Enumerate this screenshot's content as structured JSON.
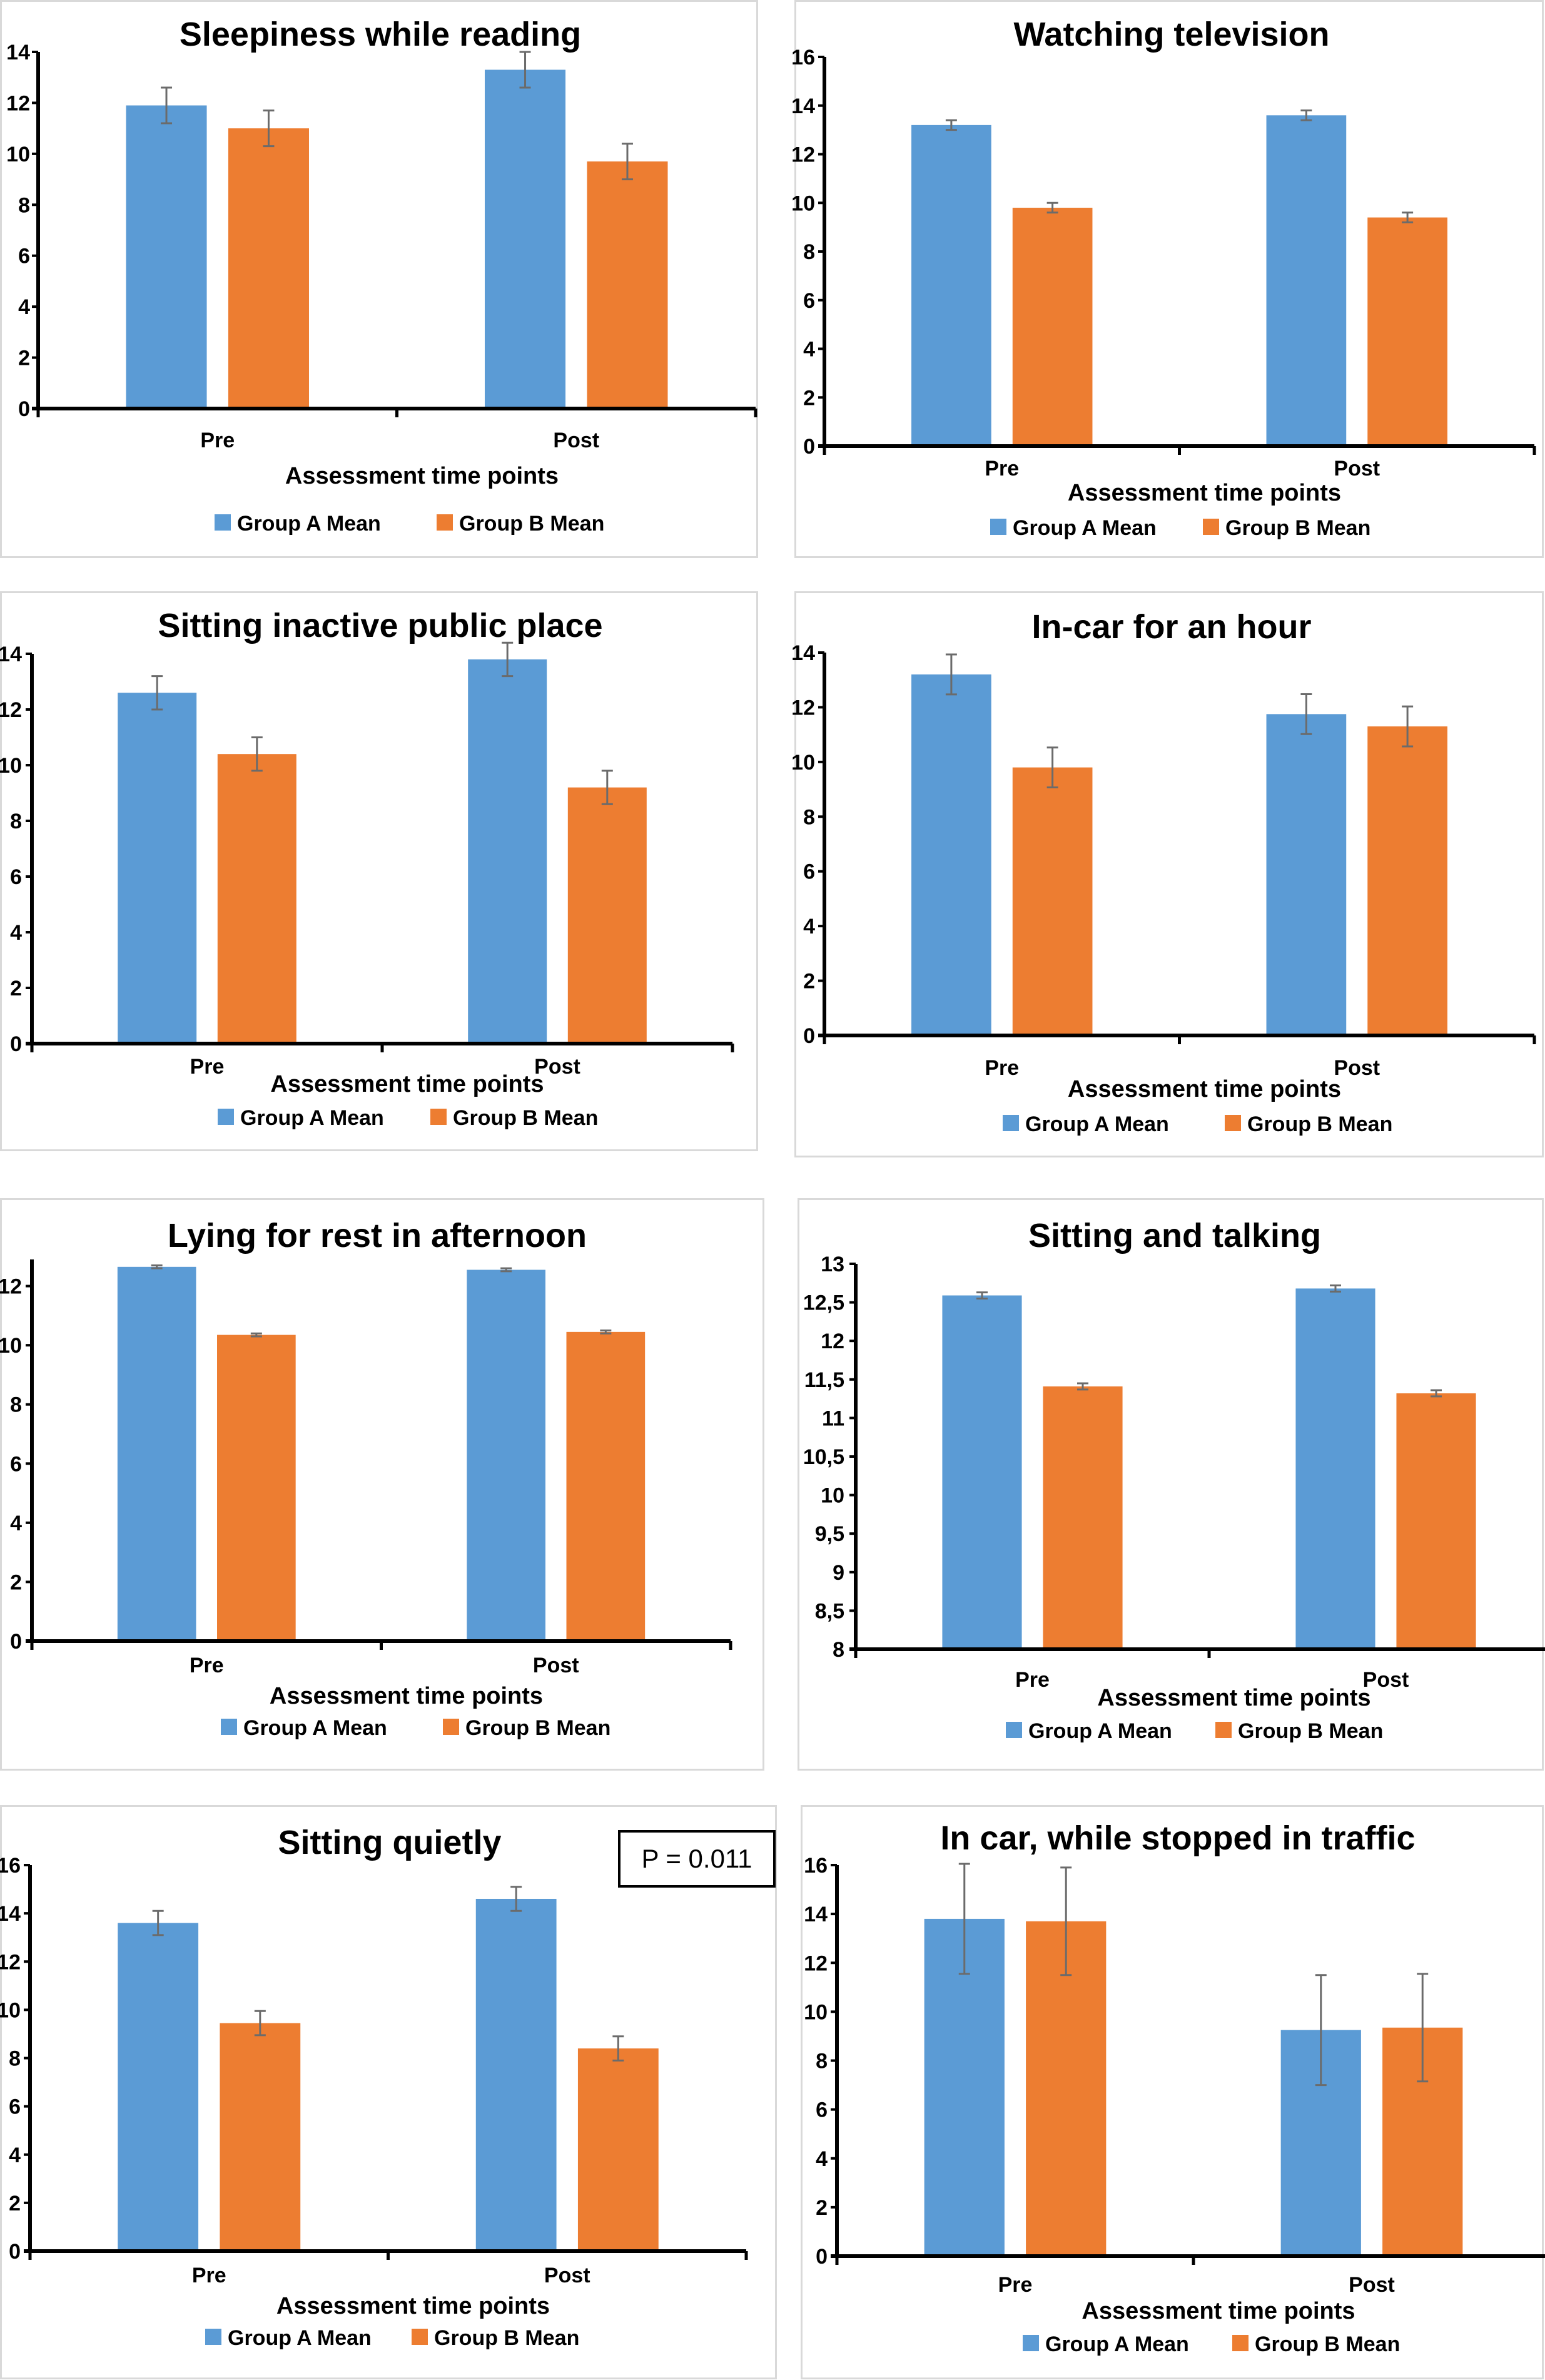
{
  "colors": {
    "group_a": "#5b9bd5",
    "group_b": "#ed7d31",
    "error_bar": "#6b6b6b",
    "axis": "#000000"
  },
  "chart_data": [
    {
      "type": "bar",
      "title": "Sleepiness while reading",
      "categories": [
        "Pre",
        "Post"
      ],
      "xlabel": "Assessment time points",
      "ylabel": "",
      "ylim": [
        0,
        14
      ],
      "yticks": [
        0,
        2,
        4,
        6,
        8,
        10,
        12,
        14
      ],
      "ytick_labels": [
        "0",
        "2",
        "4",
        "6",
        "8",
        "10",
        "12",
        "14"
      ],
      "grid": false,
      "legend_position": "bottom",
      "series": [
        {
          "name": "Group A Mean",
          "values": [
            11.9,
            13.3
          ],
          "errors": [
            0.7,
            0.7
          ]
        },
        {
          "name": "Group B Mean",
          "values": [
            11.0,
            9.7
          ],
          "errors": [
            0.7,
            0.7
          ]
        }
      ]
    },
    {
      "type": "bar",
      "title": "Watching television",
      "categories": [
        "Pre",
        "Post"
      ],
      "xlabel": "Assessment time points",
      "ylabel": "",
      "ylim": [
        0,
        16
      ],
      "yticks": [
        0,
        2,
        4,
        6,
        8,
        10,
        12,
        14,
        16
      ],
      "ytick_labels": [
        "0",
        "2",
        "4",
        "6",
        "8",
        "10",
        "12",
        "14",
        "16"
      ],
      "grid": false,
      "legend_position": "bottom",
      "series": [
        {
          "name": "Group A Mean",
          "values": [
            13.2,
            13.6
          ],
          "errors": [
            0.2,
            0.2
          ]
        },
        {
          "name": "Group B Mean",
          "values": [
            9.8,
            9.4
          ],
          "errors": [
            0.2,
            0.2
          ]
        }
      ]
    },
    {
      "type": "bar",
      "title": "Sitting inactive public place",
      "categories": [
        "Pre",
        "Post"
      ],
      "xlabel": "Assessment time points",
      "ylabel": "",
      "ylim": [
        0,
        14
      ],
      "yticks": [
        0,
        2,
        4,
        6,
        8,
        10,
        12,
        14
      ],
      "ytick_labels": [
        "0",
        "2",
        "4",
        "6",
        "8",
        "10",
        "12",
        "14"
      ],
      "grid": false,
      "legend_position": "bottom",
      "series": [
        {
          "name": "Group A  Mean",
          "values": [
            12.6,
            13.8
          ],
          "errors": [
            0.6,
            0.6
          ]
        },
        {
          "name": "Group B Mean",
          "values": [
            10.4,
            9.2
          ],
          "errors": [
            0.6,
            0.6
          ]
        }
      ]
    },
    {
      "type": "bar",
      "title": "In-car for an hour",
      "categories": [
        "Pre",
        "Post"
      ],
      "xlabel": "Assessment time points",
      "ylabel": "",
      "ylim": [
        0,
        14
      ],
      "yticks": [
        0,
        2,
        4,
        6,
        8,
        10,
        12,
        14
      ],
      "ytick_labels": [
        "0",
        "2",
        "4",
        "6",
        "8",
        "10",
        "12",
        "14"
      ],
      "grid": false,
      "legend_position": "bottom",
      "series": [
        {
          "name": "Group A  Mean",
          "values": [
            13.2,
            11.75
          ],
          "errors": [
            0.73,
            0.73
          ]
        },
        {
          "name": "Group B Mean",
          "values": [
            9.8,
            11.3
          ],
          "errors": [
            0.73,
            0.73
          ]
        }
      ]
    },
    {
      "type": "bar",
      "title": "Lying for rest in afternoon",
      "categories": [
        "Pre",
        "Post"
      ],
      "xlabel": "Assessment time points",
      "ylabel": "",
      "ylim": [
        0,
        12.9
      ],
      "yticks": [
        0,
        2,
        4,
        6,
        8,
        10,
        12
      ],
      "ytick_labels": [
        "0",
        "2",
        "4",
        "6",
        "8",
        "10",
        "12"
      ],
      "grid": false,
      "legend_position": "bottom",
      "series": [
        {
          "name": "Group A  Mean",
          "values": [
            12.65,
            12.55
          ],
          "errors": [
            0.05,
            0.05
          ]
        },
        {
          "name": "Group B Mean",
          "values": [
            10.35,
            10.45
          ],
          "errors": [
            0.05,
            0.05
          ]
        }
      ]
    },
    {
      "type": "bar",
      "title": "Sitting and talking",
      "categories": [
        "Pre",
        "Post"
      ],
      "xlabel": "Assessment time points",
      "ylabel": "",
      "ylim": [
        8,
        13
      ],
      "yticks": [
        8,
        8.5,
        9,
        9.5,
        10,
        10.5,
        11,
        11.5,
        12,
        12.5,
        13
      ],
      "ytick_labels": [
        "8",
        "8,5",
        "9",
        "9,5",
        "10",
        "10,5",
        "11",
        "11,5",
        "12",
        "12,5",
        "13"
      ],
      "grid": false,
      "legend_position": "bottom",
      "series": [
        {
          "name": "Group A  Mean",
          "values": [
            12.59,
            12.68
          ],
          "errors": [
            0.04,
            0.04
          ]
        },
        {
          "name": "Group B Mean",
          "values": [
            11.41,
            11.32
          ],
          "errors": [
            0.04,
            0.04
          ]
        }
      ]
    },
    {
      "type": "bar",
      "title": "Sitting quietly",
      "categories": [
        "Pre",
        "Post"
      ],
      "xlabel": "Assessment time points",
      "ylabel": "",
      "ylim": [
        0,
        16
      ],
      "yticks": [
        0,
        2,
        4,
        6,
        8,
        10,
        12,
        14,
        16
      ],
      "ytick_labels": [
        "0",
        "2",
        "4",
        "6",
        "8",
        "10",
        "12",
        "14",
        "16"
      ],
      "grid": false,
      "legend_position": "bottom",
      "annotation": "P = 0.011",
      "series": [
        {
          "name": "Group A Mean",
          "values": [
            13.6,
            14.6
          ],
          "errors": [
            0.5,
            0.5
          ]
        },
        {
          "name": "Group B Mean",
          "values": [
            9.45,
            8.4
          ],
          "errors": [
            0.5,
            0.5
          ]
        }
      ]
    },
    {
      "type": "bar",
      "title": "In car, while stopped in traffic",
      "categories": [
        "Pre",
        "Post"
      ],
      "xlabel": "Assessment time points",
      "ylabel": "",
      "ylim": [
        0,
        16
      ],
      "yticks": [
        0,
        2,
        4,
        6,
        8,
        10,
        12,
        14,
        16
      ],
      "ytick_labels": [
        "0",
        "2",
        "4",
        "6",
        "8",
        "10",
        "12",
        "14",
        "16"
      ],
      "grid": false,
      "legend_position": "bottom",
      "series": [
        {
          "name": "Group A Mean",
          "values": [
            13.8,
            9.25
          ],
          "errors": [
            2.25,
            2.25
          ]
        },
        {
          "name": "Group B Mean",
          "values": [
            13.7,
            9.35
          ],
          "errors": [
            2.2,
            2.2
          ]
        }
      ]
    }
  ]
}
